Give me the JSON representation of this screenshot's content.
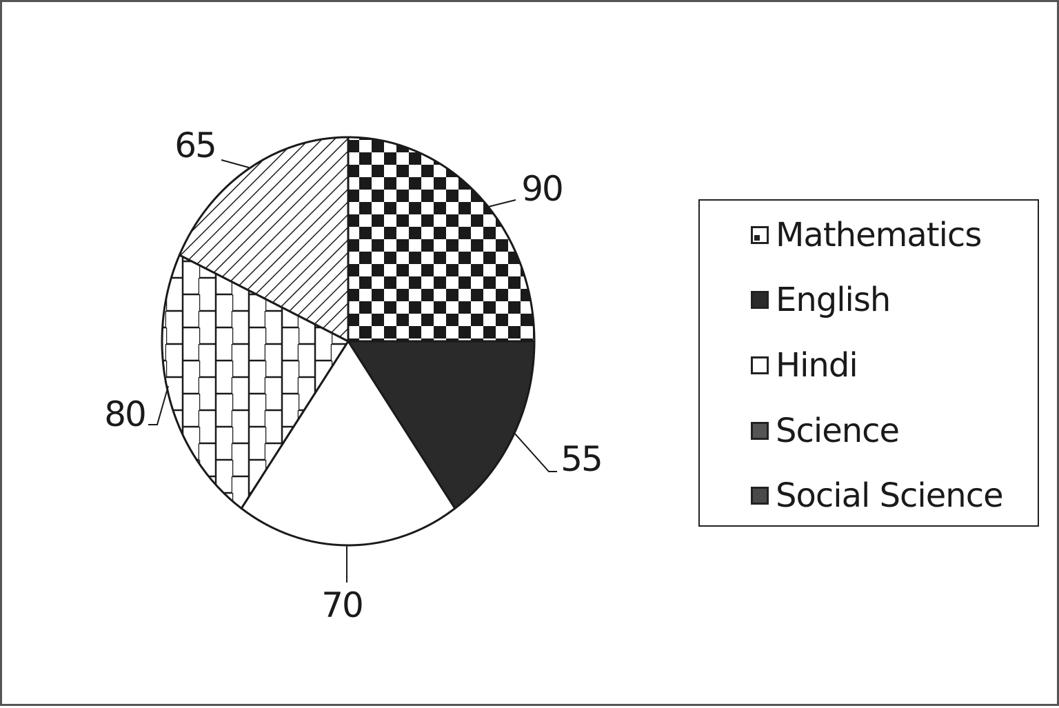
{
  "chart_data": {
    "type": "pie",
    "title": "",
    "categories": [
      "Mathematics",
      "English",
      "Hindi",
      "Science",
      "Social Science"
    ],
    "values": [
      90,
      55,
      70,
      80,
      65
    ],
    "data_labels": [
      "90",
      "55",
      "70",
      "80",
      "65"
    ],
    "legend": {
      "placement": "right",
      "entries": [
        "Mathematics",
        "English",
        "Hindi",
        "Science",
        "Social Science"
      ]
    },
    "slice_fills": [
      "checkerboard",
      "solid-dark",
      "white",
      "brick",
      "diagonal-hatch"
    ],
    "colors": {
      "dark": "#2a2a2a",
      "outline": "#1a1a1a",
      "legend_science": "#555555",
      "legend_social": "#4a4a4a"
    }
  }
}
